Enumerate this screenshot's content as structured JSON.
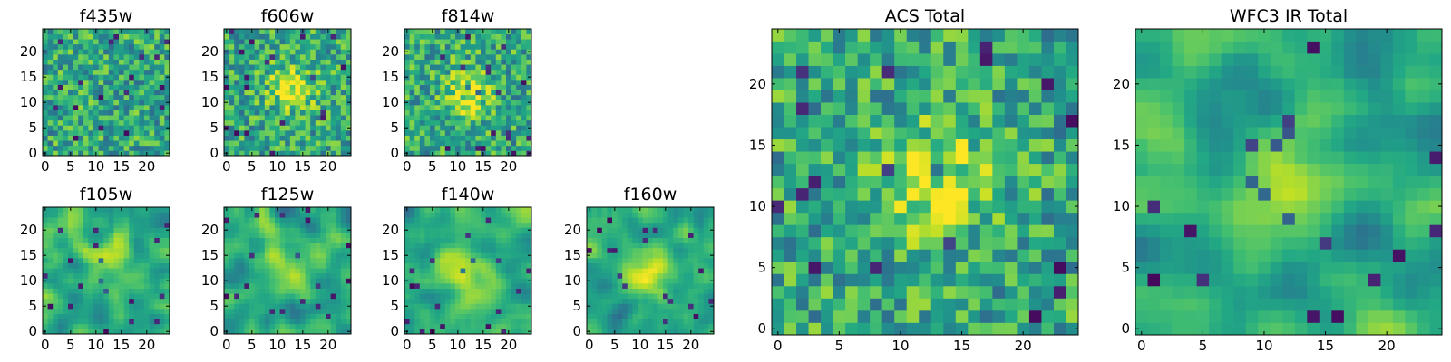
{
  "chart_data": [
    {
      "type": "heatmap",
      "title": "f435w",
      "grid_size": 25,
      "colormap": "viridis",
      "xticks": [
        "0",
        "5",
        "10",
        "15",
        "20"
      ],
      "yticks": [
        "0",
        "5",
        "10",
        "15",
        "20"
      ],
      "texture": "noise",
      "hotspot": null
    },
    {
      "type": "heatmap",
      "title": "f606w",
      "grid_size": 25,
      "colormap": "viridis",
      "xticks": [
        "0",
        "5",
        "10",
        "15",
        "20"
      ],
      "yticks": [
        "0",
        "5",
        "10",
        "15",
        "20"
      ],
      "texture": "noise",
      "hotspot": [
        13,
        13
      ]
    },
    {
      "type": "heatmap",
      "title": "f814w",
      "grid_size": 25,
      "colormap": "viridis",
      "xticks": [
        "0",
        "5",
        "10",
        "15",
        "20"
      ],
      "yticks": [
        "0",
        "5",
        "10",
        "15",
        "20"
      ],
      "texture": "noise",
      "hotspot": [
        12,
        12
      ]
    },
    {
      "type": "heatmap",
      "title": "f105w",
      "grid_size": 25,
      "colormap": "viridis",
      "xticks": [
        "0",
        "5",
        "10",
        "15",
        "20"
      ],
      "yticks": [
        "0",
        "5",
        "10",
        "15",
        "20"
      ],
      "texture": "smooth",
      "hotspot": [
        13,
        12
      ]
    },
    {
      "type": "heatmap",
      "title": "f125w",
      "grid_size": 25,
      "colormap": "viridis",
      "xticks": [
        "0",
        "5",
        "10",
        "15",
        "20"
      ],
      "yticks": [
        "0",
        "5",
        "10",
        "15",
        "20"
      ],
      "texture": "smooth",
      "hotspot": [
        12,
        12
      ]
    },
    {
      "type": "heatmap",
      "title": "f140w",
      "grid_size": 25,
      "colormap": "viridis",
      "xticks": [
        "0",
        "5",
        "10",
        "15",
        "20"
      ],
      "yticks": [
        "0",
        "5",
        "10",
        "15",
        "20"
      ],
      "texture": "smooth",
      "hotspot": [
        12,
        12
      ]
    },
    {
      "type": "heatmap",
      "title": "f160w",
      "grid_size": 25,
      "colormap": "viridis",
      "xticks": [
        "0",
        "5",
        "10",
        "15",
        "20"
      ],
      "yticks": [
        "0",
        "5",
        "10",
        "15",
        "20"
      ],
      "texture": "smooth",
      "hotspot": [
        11,
        11
      ]
    },
    {
      "type": "heatmap",
      "title": "ACS Total",
      "grid_size": 25,
      "colormap": "viridis",
      "xticks": [
        "0",
        "5",
        "10",
        "15",
        "20"
      ],
      "yticks": [
        "0",
        "5",
        "10",
        "15",
        "20"
      ],
      "texture": "noise",
      "hotspot": [
        13,
        12
      ]
    },
    {
      "type": "heatmap",
      "title": "WFC3 IR Total",
      "grid_size": 25,
      "colormap": "viridis",
      "xticks": [
        "0",
        "5",
        "10",
        "15",
        "20"
      ],
      "yticks": [
        "0",
        "5",
        "10",
        "15",
        "20"
      ],
      "texture": "smooth",
      "hotspot": [
        12,
        12
      ]
    }
  ]
}
